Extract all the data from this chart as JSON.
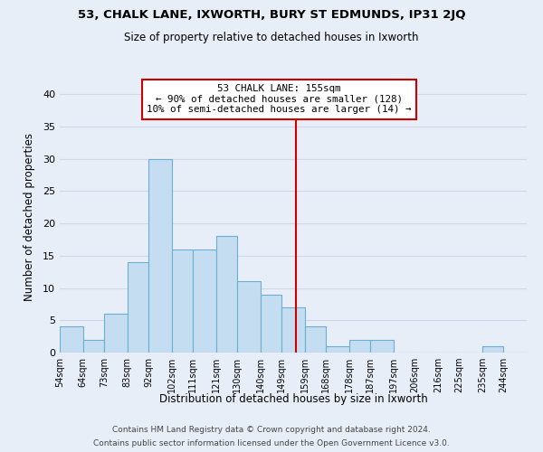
{
  "title1": "53, CHALK LANE, IXWORTH, BURY ST EDMUNDS, IP31 2JQ",
  "title2": "Size of property relative to detached houses in Ixworth",
  "xlabel": "Distribution of detached houses by size in Ixworth",
  "ylabel": "Number of detached properties",
  "bin_labels": [
    "54sqm",
    "64sqm",
    "73sqm",
    "83sqm",
    "92sqm",
    "102sqm",
    "111sqm",
    "121sqm",
    "130sqm",
    "140sqm",
    "149sqm",
    "159sqm",
    "168sqm",
    "178sqm",
    "187sqm",
    "197sqm",
    "206sqm",
    "216sqm",
    "225sqm",
    "235sqm",
    "244sqm"
  ],
  "bin_lefts": [
    54,
    64,
    73,
    83,
    92,
    102,
    111,
    121,
    130,
    140,
    149,
    159,
    168,
    178,
    187,
    197,
    206,
    216,
    225,
    235,
    244
  ],
  "bin_widths": [
    10,
    9,
    10,
    9,
    10,
    9,
    10,
    9,
    10,
    9,
    10,
    9,
    10,
    9,
    10,
    9,
    10,
    9,
    10,
    9,
    10
  ],
  "counts": [
    4,
    2,
    6,
    14,
    30,
    16,
    16,
    18,
    11,
    9,
    7,
    4,
    1,
    2,
    2,
    0,
    0,
    0,
    0,
    1,
    0
  ],
  "bar_color": "#c5ddf0",
  "bar_edge_color": "#6aaed6",
  "vline_x": 155,
  "vline_color": "#cc0000",
  "annotation_title": "53 CHALK LANE: 155sqm",
  "annotation_line1": "← 90% of detached houses are smaller (128)",
  "annotation_line2": "10% of semi-detached houses are larger (14) →",
  "annotation_box_color": "#ffffff",
  "annotation_box_edge": "#cc0000",
  "ylim": [
    0,
    42
  ],
  "xlim_left": 54,
  "xlim_right": 254,
  "yticks": [
    0,
    5,
    10,
    15,
    20,
    25,
    30,
    35,
    40
  ],
  "grid_color": "#d0d8e8",
  "footer1": "Contains HM Land Registry data © Crown copyright and database right 2024.",
  "footer2": "Contains public sector information licensed under the Open Government Licence v3.0.",
  "background_color": "#e8eef8"
}
